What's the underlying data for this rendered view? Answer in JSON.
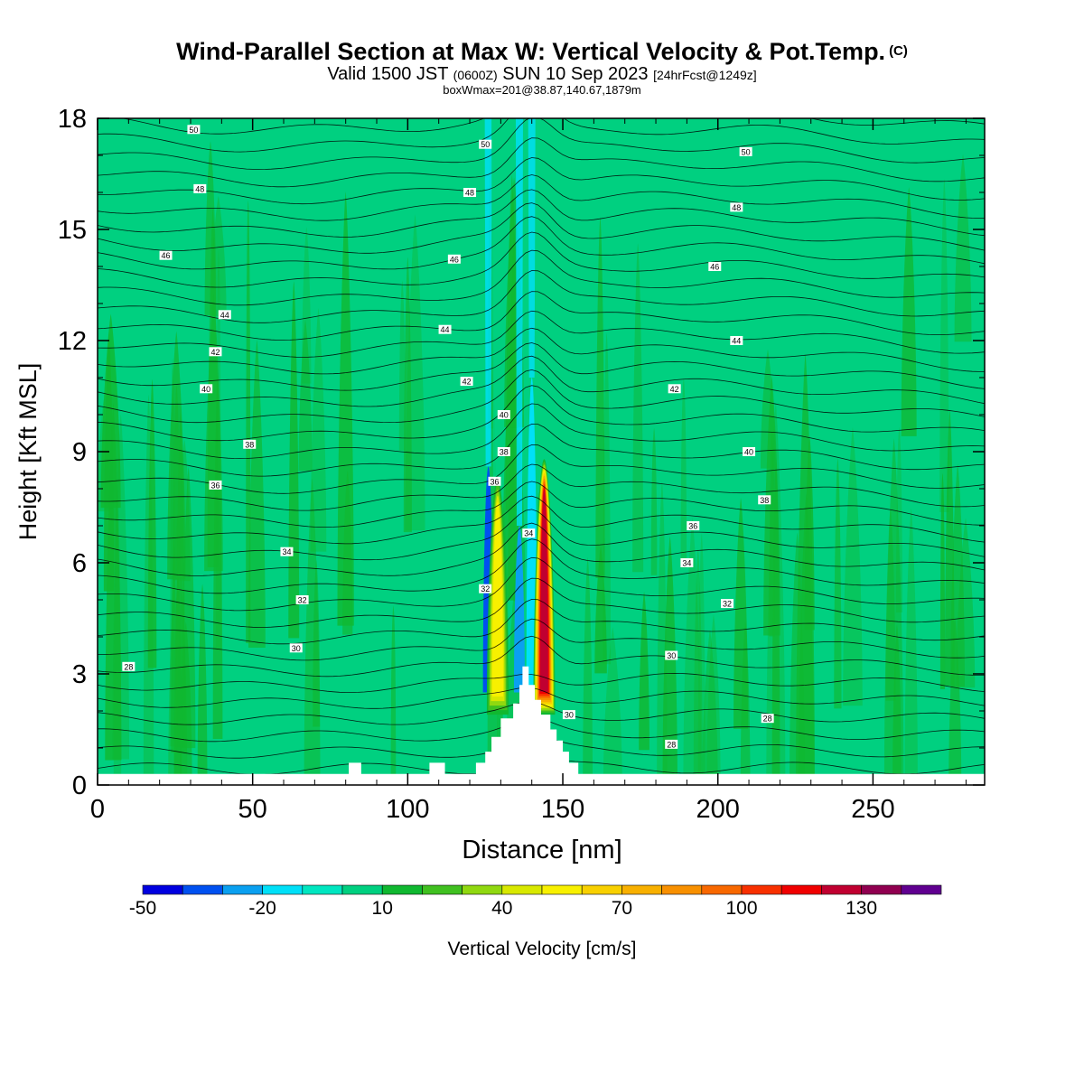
{
  "header": {
    "title": "Wind-Parallel Section at Max W: Vertical Velocity & Pot.Temp.",
    "title_tag": "(C)",
    "valid_prefix": "Valid 1500 JST",
    "valid_utc": "(0600Z)",
    "valid_day": "SUN 10 Sep 2023",
    "forecast": "[24hrFcst@1249z]",
    "box_info": "boxWmax=201@38.87,140.67,1879m"
  },
  "chart_data": {
    "type": "heatmap",
    "xlabel": "Distance [nm]",
    "ylabel": "Height [Kft MSL]",
    "xlim": [
      0,
      286
    ],
    "ylim": [
      0,
      18
    ],
    "x_ticks": [
      0,
      50,
      100,
      150,
      200,
      250
    ],
    "y_ticks": [
      0,
      3,
      6,
      9,
      12,
      15,
      18
    ],
    "colorbar": {
      "label": "Vertical Velocity [cm/s]",
      "tick_labels": [
        -50,
        -20,
        10,
        40,
        70,
        100,
        130
      ],
      "bounds": [
        -50,
        150
      ],
      "colors": [
        "#0000e0",
        "#0050f0",
        "#0aa0f0",
        "#00e0f8",
        "#00e6c0",
        "#00d080",
        "#10b830",
        "#40c020",
        "#90d810",
        "#d8e800",
        "#f8f000",
        "#f8d000",
        "#f8b000",
        "#f89000",
        "#f86800",
        "#f83000",
        "#f00000",
        "#c00030",
        "#900050",
        "#600090"
      ]
    },
    "background_w": 5,
    "updrafts": [
      {
        "x_center": 129,
        "peak_w": 60,
        "top_kft": 8.3
      },
      {
        "x_center": 144,
        "peak_w": 130,
        "top_kft": 8.8
      }
    ],
    "downdrafts": [
      {
        "x_center": 126,
        "min_w": -40,
        "top_kft": 8.6
      },
      {
        "x_center": 136,
        "min_w": -30,
        "top_kft": 7
      },
      {
        "x_center": 140,
        "min_w": -20,
        "top_kft": 11
      }
    ],
    "terrain": {
      "x": [
        0,
        81,
        81,
        85,
        85,
        107,
        107,
        112,
        112,
        122,
        122,
        125,
        125,
        127,
        127,
        130,
        130,
        134,
        134,
        136,
        136,
        137,
        137,
        139,
        139,
        141,
        141,
        143,
        143,
        146,
        146,
        148,
        148,
        150,
        150,
        152,
        152,
        155,
        155,
        160,
        160,
        286
      ],
      "height_kft": [
        0.3,
        0.3,
        0.6,
        0.6,
        0.3,
        0.3,
        0.6,
        0.6,
        0.3,
        0.3,
        0.6,
        0.6,
        0.9,
        0.9,
        1.3,
        1.3,
        1.8,
        1.8,
        2.2,
        2.2,
        2.7,
        2.7,
        3.2,
        3.2,
        2.7,
        2.7,
        2.3,
        2.3,
        1.9,
        1.9,
        1.5,
        1.5,
        1.2,
        1.2,
        0.9,
        0.9,
        0.6,
        0.6,
        0.3,
        0.3,
        0.3,
        0.3
      ]
    },
    "theta_labels": [
      {
        "value": "50",
        "x": 31,
        "y": 17.7
      },
      {
        "value": "48",
        "x": 33,
        "y": 16.1
      },
      {
        "value": "46",
        "x": 22,
        "y": 14.3
      },
      {
        "value": "44",
        "x": 41,
        "y": 12.7
      },
      {
        "value": "42",
        "x": 38,
        "y": 11.7
      },
      {
        "value": "40",
        "x": 35,
        "y": 10.7
      },
      {
        "value": "38",
        "x": 49,
        "y": 9.2
      },
      {
        "value": "36",
        "x": 38,
        "y": 8.1
      },
      {
        "value": "34",
        "x": 61,
        "y": 6.3
      },
      {
        "value": "32",
        "x": 66,
        "y": 5.0
      },
      {
        "value": "30",
        "x": 64,
        "y": 3.7
      },
      {
        "value": "28",
        "x": 10,
        "y": 3.2
      },
      {
        "value": "50",
        "x": 125,
        "y": 17.3
      },
      {
        "value": "48",
        "x": 120,
        "y": 16.0
      },
      {
        "value": "46",
        "x": 115,
        "y": 14.2
      },
      {
        "value": "44",
        "x": 112,
        "y": 12.3
      },
      {
        "value": "42",
        "x": 119,
        "y": 10.9
      },
      {
        "value": "40",
        "x": 131,
        "y": 10.0
      },
      {
        "value": "38",
        "x": 131,
        "y": 9.0
      },
      {
        "value": "36",
        "x": 128,
        "y": 8.2
      },
      {
        "value": "34",
        "x": 139,
        "y": 6.8
      },
      {
        "value": "32",
        "x": 125,
        "y": 5.3
      },
      {
        "value": "30",
        "x": 152,
        "y": 1.9
      },
      {
        "value": "28",
        "x": 185,
        "y": 1.1
      },
      {
        "value": "50",
        "x": 209,
        "y": 17.1
      },
      {
        "value": "48",
        "x": 206,
        "y": 15.6
      },
      {
        "value": "46",
        "x": 199,
        "y": 14.0
      },
      {
        "value": "44",
        "x": 206,
        "y": 12.0
      },
      {
        "value": "42",
        "x": 186,
        "y": 10.7
      },
      {
        "value": "40",
        "x": 210,
        "y": 9.0
      },
      {
        "value": "38",
        "x": 215,
        "y": 7.7
      },
      {
        "value": "36",
        "x": 192,
        "y": 7.0
      },
      {
        "value": "34",
        "x": 190,
        "y": 6.0
      },
      {
        "value": "32",
        "x": 203,
        "y": 4.9
      },
      {
        "value": "30",
        "x": 185,
        "y": 3.5
      },
      {
        "value": "28",
        "x": 216,
        "y": 1.8
      }
    ]
  }
}
